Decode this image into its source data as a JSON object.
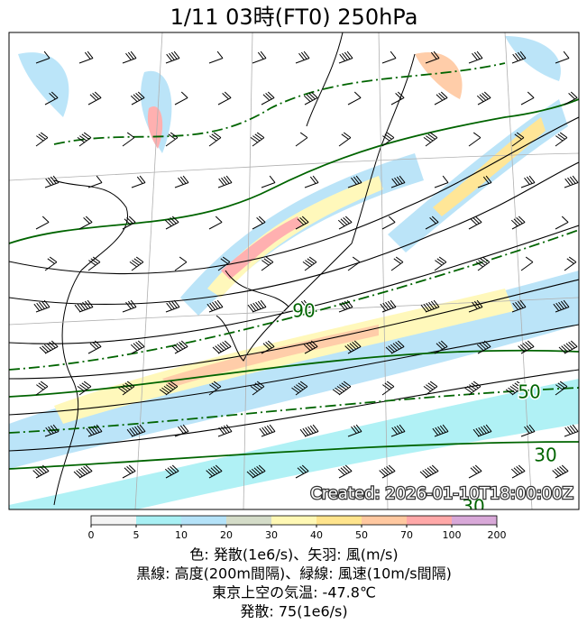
{
  "title": "1/11  03時(FT0)    250hPa",
  "map": {
    "contour_labels": [
      "90",
      "50",
      "30",
      "30"
    ],
    "created": "Created: 2026-01-10T18:00:00Z"
  },
  "colorbar": {
    "ticks": [
      "0",
      "5",
      "10",
      "20",
      "30",
      "40",
      "50",
      "70",
      "100",
      "200"
    ],
    "colors": [
      "#f4f4f4",
      "#a8f0f4",
      "#b4e2f8",
      "#d4dcc8",
      "#fff8b4",
      "#ffe48c",
      "#ffc8a0",
      "#ffa8a8",
      "#d8a8d8"
    ]
  },
  "caption": [
    "色: 発散(1e6/s)、矢羽: 風(m/s)",
    "黒線: 高度(200m間隔)、緑線: 風速(10m/s間隔)",
    "東京上空の気温: -47.8℃",
    "発散: 75(1e6/s)"
  ]
}
